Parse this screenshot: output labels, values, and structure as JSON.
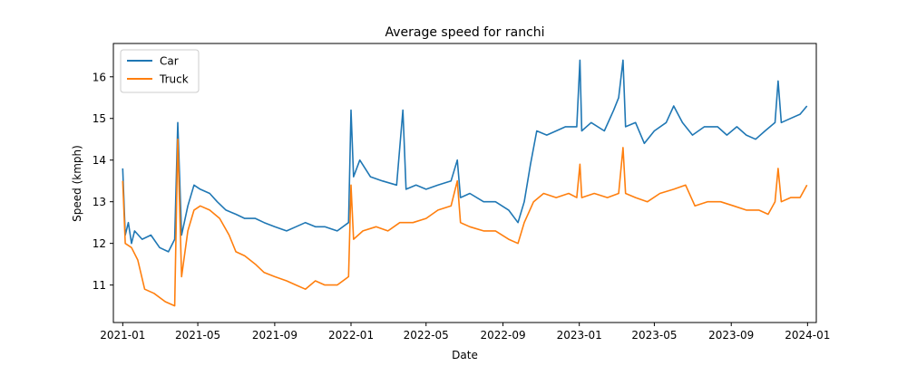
{
  "chart_data": {
    "type": "line",
    "title": "Average speed for ranchi",
    "xlabel": "Date",
    "ylabel": "Speed (kmph)",
    "x_axis": {
      "type": "date",
      "range": [
        "2020-12-17",
        "2024-01-15"
      ]
    },
    "ylim": [
      10.1,
      16.8
    ],
    "x_ticks": [
      "2021-01",
      "2021-05",
      "2021-09",
      "2022-01",
      "2022-05",
      "2022-09",
      "2023-01",
      "2023-05",
      "2023-09",
      "2024-01"
    ],
    "y_ticks": [
      11,
      12,
      13,
      14,
      15,
      16
    ],
    "grid": false,
    "legend_position": "upper-left",
    "series": [
      {
        "name": "Car",
        "color": "#1f77b4",
        "points": [
          [
            "2021-01-01",
            13.8
          ],
          [
            "2021-01-05",
            12.2
          ],
          [
            "2021-01-10",
            12.5
          ],
          [
            "2021-01-15",
            12.0
          ],
          [
            "2021-01-20",
            12.3
          ],
          [
            "2021-02-01",
            12.1
          ],
          [
            "2021-02-15",
            12.2
          ],
          [
            "2021-03-01",
            11.9
          ],
          [
            "2021-03-15",
            11.8
          ],
          [
            "2021-03-25",
            12.1
          ],
          [
            "2021-03-30",
            14.9
          ],
          [
            "2021-04-05",
            12.2
          ],
          [
            "2021-04-15",
            12.9
          ],
          [
            "2021-04-25",
            13.4
          ],
          [
            "2021-05-05",
            13.3
          ],
          [
            "2021-05-20",
            13.2
          ],
          [
            "2021-06-01",
            13.0
          ],
          [
            "2021-06-15",
            12.8
          ],
          [
            "2021-07-01",
            12.7
          ],
          [
            "2021-07-15",
            12.6
          ],
          [
            "2021-08-01",
            12.6
          ],
          [
            "2021-08-15",
            12.5
          ],
          [
            "2021-09-01",
            12.4
          ],
          [
            "2021-09-20",
            12.3
          ],
          [
            "2021-10-05",
            12.4
          ],
          [
            "2021-10-20",
            12.5
          ],
          [
            "2021-11-05",
            12.4
          ],
          [
            "2021-11-20",
            12.4
          ],
          [
            "2021-12-10",
            12.3
          ],
          [
            "2021-12-28",
            12.5
          ],
          [
            "2022-01-01",
            15.2
          ],
          [
            "2022-01-05",
            13.6
          ],
          [
            "2022-01-15",
            14.0
          ],
          [
            "2022-02-01",
            13.6
          ],
          [
            "2022-02-20",
            13.5
          ],
          [
            "2022-03-15",
            13.4
          ],
          [
            "2022-03-25",
            15.2
          ],
          [
            "2022-03-30",
            13.3
          ],
          [
            "2022-04-15",
            13.4
          ],
          [
            "2022-05-01",
            13.3
          ],
          [
            "2022-05-20",
            13.4
          ],
          [
            "2022-06-10",
            13.5
          ],
          [
            "2022-06-20",
            14.0
          ],
          [
            "2022-06-25",
            13.1
          ],
          [
            "2022-07-10",
            13.2
          ],
          [
            "2022-08-01",
            13.0
          ],
          [
            "2022-08-20",
            13.0
          ],
          [
            "2022-09-10",
            12.8
          ],
          [
            "2022-09-25",
            12.5
          ],
          [
            "2022-10-05",
            13.0
          ],
          [
            "2022-10-15",
            13.9
          ],
          [
            "2022-10-25",
            14.7
          ],
          [
            "2022-11-10",
            14.6
          ],
          [
            "2022-11-25",
            14.7
          ],
          [
            "2022-12-10",
            14.8
          ],
          [
            "2022-12-28",
            14.8
          ],
          [
            "2023-01-02",
            16.4
          ],
          [
            "2023-01-05",
            14.7
          ],
          [
            "2023-01-20",
            14.9
          ],
          [
            "2023-02-10",
            14.7
          ],
          [
            "2023-02-25",
            15.2
          ],
          [
            "2023-03-05",
            15.5
          ],
          [
            "2023-03-12",
            16.4
          ],
          [
            "2023-03-16",
            14.8
          ],
          [
            "2023-04-01",
            14.9
          ],
          [
            "2023-04-15",
            14.4
          ],
          [
            "2023-05-01",
            14.7
          ],
          [
            "2023-05-20",
            14.9
          ],
          [
            "2023-06-01",
            15.3
          ],
          [
            "2023-06-15",
            14.9
          ],
          [
            "2023-07-01",
            14.6
          ],
          [
            "2023-07-20",
            14.8
          ],
          [
            "2023-08-10",
            14.8
          ],
          [
            "2023-08-25",
            14.6
          ],
          [
            "2023-09-10",
            14.8
          ],
          [
            "2023-09-25",
            14.6
          ],
          [
            "2023-10-10",
            14.5
          ],
          [
            "2023-10-25",
            14.7
          ],
          [
            "2023-11-10",
            14.9
          ],
          [
            "2023-11-15",
            15.9
          ],
          [
            "2023-11-20",
            14.9
          ],
          [
            "2023-12-05",
            15.0
          ],
          [
            "2023-12-20",
            15.1
          ],
          [
            "2023-12-31",
            15.3
          ]
        ]
      },
      {
        "name": "Truck",
        "color": "#ff7f0e",
        "points": [
          [
            "2021-01-01",
            13.5
          ],
          [
            "2021-01-05",
            12.0
          ],
          [
            "2021-01-15",
            11.9
          ],
          [
            "2021-01-25",
            11.6
          ],
          [
            "2021-02-05",
            10.9
          ],
          [
            "2021-02-20",
            10.8
          ],
          [
            "2021-03-10",
            10.6
          ],
          [
            "2021-03-25",
            10.5
          ],
          [
            "2021-03-30",
            14.5
          ],
          [
            "2021-04-05",
            11.2
          ],
          [
            "2021-04-15",
            12.3
          ],
          [
            "2021-04-25",
            12.8
          ],
          [
            "2021-05-05",
            12.9
          ],
          [
            "2021-05-20",
            12.8
          ],
          [
            "2021-06-05",
            12.6
          ],
          [
            "2021-06-20",
            12.2
          ],
          [
            "2021-07-01",
            11.8
          ],
          [
            "2021-07-15",
            11.7
          ],
          [
            "2021-08-01",
            11.5
          ],
          [
            "2021-08-15",
            11.3
          ],
          [
            "2021-09-01",
            11.2
          ],
          [
            "2021-09-20",
            11.1
          ],
          [
            "2021-10-05",
            11.0
          ],
          [
            "2021-10-20",
            10.9
          ],
          [
            "2021-11-05",
            11.1
          ],
          [
            "2021-11-20",
            11.0
          ],
          [
            "2021-12-10",
            11.0
          ],
          [
            "2021-12-28",
            11.2
          ],
          [
            "2022-01-01",
            13.4
          ],
          [
            "2022-01-05",
            12.1
          ],
          [
            "2022-01-20",
            12.3
          ],
          [
            "2022-02-10",
            12.4
          ],
          [
            "2022-03-01",
            12.3
          ],
          [
            "2022-03-20",
            12.5
          ],
          [
            "2022-04-10",
            12.5
          ],
          [
            "2022-05-01",
            12.6
          ],
          [
            "2022-05-20",
            12.8
          ],
          [
            "2022-06-10",
            12.9
          ],
          [
            "2022-06-20",
            13.5
          ],
          [
            "2022-06-25",
            12.5
          ],
          [
            "2022-07-10",
            12.4
          ],
          [
            "2022-08-01",
            12.3
          ],
          [
            "2022-08-20",
            12.3
          ],
          [
            "2022-09-10",
            12.1
          ],
          [
            "2022-09-25",
            12.0
          ],
          [
            "2022-10-05",
            12.5
          ],
          [
            "2022-10-20",
            13.0
          ],
          [
            "2022-11-05",
            13.2
          ],
          [
            "2022-11-25",
            13.1
          ],
          [
            "2022-12-15",
            13.2
          ],
          [
            "2022-12-28",
            13.1
          ],
          [
            "2023-01-02",
            13.9
          ],
          [
            "2023-01-05",
            13.1
          ],
          [
            "2023-01-25",
            13.2
          ],
          [
            "2023-02-15",
            13.1
          ],
          [
            "2023-03-05",
            13.2
          ],
          [
            "2023-03-12",
            14.3
          ],
          [
            "2023-03-16",
            13.2
          ],
          [
            "2023-04-01",
            13.1
          ],
          [
            "2023-04-20",
            13.0
          ],
          [
            "2023-05-10",
            13.2
          ],
          [
            "2023-06-01",
            13.3
          ],
          [
            "2023-06-20",
            13.4
          ],
          [
            "2023-07-05",
            12.9
          ],
          [
            "2023-07-25",
            13.0
          ],
          [
            "2023-08-15",
            13.0
          ],
          [
            "2023-09-05",
            12.9
          ],
          [
            "2023-09-25",
            12.8
          ],
          [
            "2023-10-15",
            12.8
          ],
          [
            "2023-10-30",
            12.7
          ],
          [
            "2023-11-10",
            13.0
          ],
          [
            "2023-11-15",
            13.8
          ],
          [
            "2023-11-20",
            13.0
          ],
          [
            "2023-12-05",
            13.1
          ],
          [
            "2023-12-20",
            13.1
          ],
          [
            "2023-12-31",
            13.4
          ]
        ]
      }
    ]
  }
}
